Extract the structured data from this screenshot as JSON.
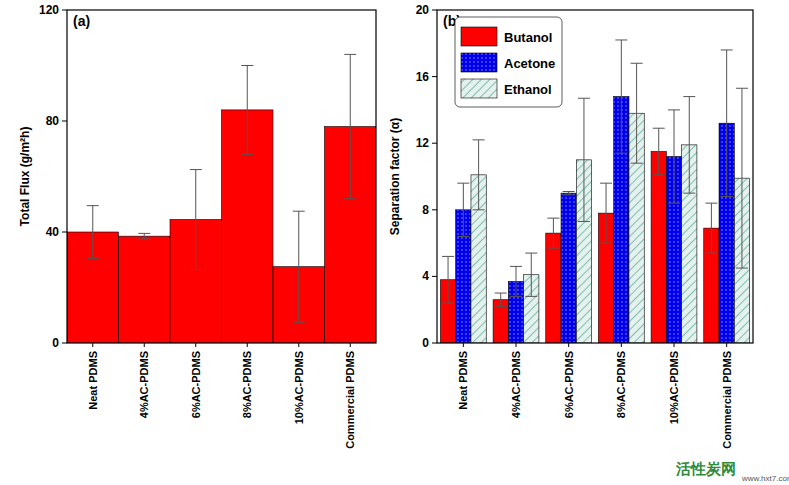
{
  "chart_data": [
    {
      "type": "bar",
      "title": "(a)",
      "y_label": "Total Flux (g/m²h)",
      "categories": [
        "Neat PDMS",
        "4%AC-PDMS",
        "6%AC-PDMS",
        "8%AC-PDMS",
        "10%AC-PDMS",
        "Commercial PDMS"
      ],
      "values": [
        40,
        38.5,
        44.5,
        84,
        27.5,
        78
      ],
      "errors": [
        9.5,
        1,
        18,
        16,
        20,
        26
      ],
      "color": "#ff0000",
      "ylim": [
        0,
        120
      ],
      "yticks": [
        0,
        40,
        80,
        120
      ],
      "grid": false
    },
    {
      "type": "bar",
      "title": "(b)",
      "y_label": "Separation factor (α)",
      "categories": [
        "Neat PDMS",
        "4%AC-PDMS",
        "6%AC-PDMS",
        "8%AC-PDMS",
        "10%AC-PDMS",
        "Commercial PDMS"
      ],
      "series": [
        {
          "name": "Butanol",
          "color": "#ff0000",
          "values": [
            3.8,
            2.6,
            6.6,
            7.8,
            11.5,
            6.9
          ],
          "errors": [
            1.4,
            0.4,
            0.9,
            1.8,
            1.4,
            1.5
          ]
        },
        {
          "name": "Acetone",
          "color": "#0000ee",
          "values": [
            8.0,
            3.7,
            9.0,
            14.8,
            11.2,
            13.2
          ],
          "errors": [
            1.6,
            0.9,
            0.1,
            3.4,
            2.8,
            4.4
          ]
        },
        {
          "name": "Ethanol",
          "color": "#3c9a8a",
          "values": [
            10.1,
            4.1,
            11.0,
            13.8,
            11.9,
            9.9
          ],
          "errors": [
            2.1,
            1.3,
            3.7,
            3.0,
            2.9,
            5.4
          ]
        }
      ],
      "ylim": [
        0,
        20
      ],
      "yticks": [
        0,
        4,
        8,
        12,
        16,
        20
      ],
      "grid": false,
      "legend": "upper left"
    }
  ],
  "watermark": {
    "text": "活性炭网",
    "url": "www.hxt7.com"
  }
}
